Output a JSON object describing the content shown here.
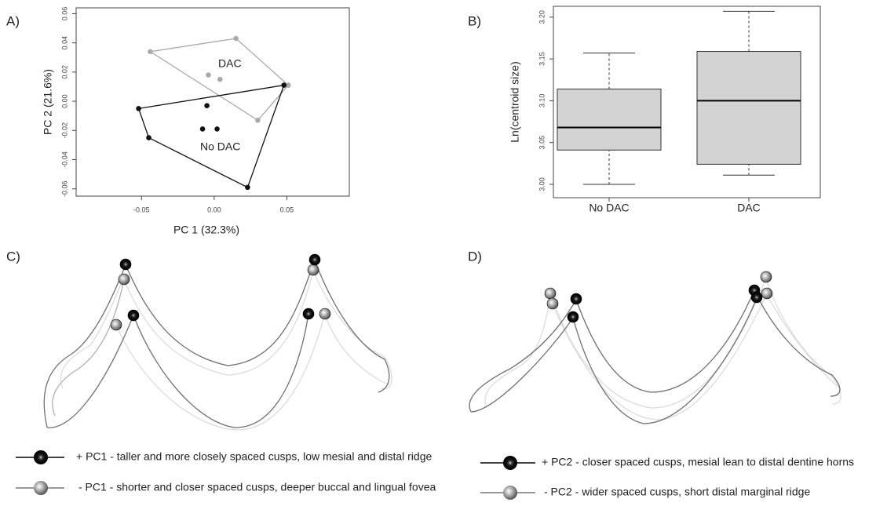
{
  "panels": [
    "A)",
    "B)",
    "C)",
    "D)"
  ],
  "chart_data": [
    {
      "type": "scatter",
      "xlabel": "PC 1 (32.3%)",
      "ylabel": "PC 2 (21.6%)",
      "xlim": [
        -0.095,
        0.093
      ],
      "ylim": [
        -0.065,
        0.064
      ],
      "xticks": [
        -0.05,
        {
          "value": 0,
          "label": "0.00"
        },
        0.05
      ],
      "yticks": [
        -0.06,
        -0.04,
        -0.02,
        {
          "value": 0,
          "label": "0.00"
        },
        0.02,
        0.04,
        0.06
      ],
      "hull": true,
      "series": [
        {
          "name": "DAC",
          "color": "#aaaaaa",
          "x": [
            -0.044,
            0.015,
            -0.004,
            0.004,
            0.051,
            0.03
          ],
          "values": [
            0.034,
            0.043,
            0.018,
            0.015,
            0.011,
            -0.013
          ]
        },
        {
          "name": "No DAC",
          "color": "#111111",
          "x": [
            -0.052,
            -0.045,
            -0.005,
            -0.008,
            0.002,
            0.023,
            0.048
          ],
          "values": [
            -0.005,
            -0.025,
            -0.003,
            -0.019,
            -0.019,
            -0.059,
            0.011
          ]
        }
      ]
    },
    {
      "type": "box",
      "ylabel": "Ln(centroid size)",
      "categories": [
        "No DAC",
        "DAC"
      ],
      "color": "#d3d3d3",
      "ylim": [
        2.984,
        3.213
      ],
      "yticks": [
        {
          "value": 3,
          "label": "3.00"
        },
        3.05,
        {
          "value": 3.1,
          "label": "3.10"
        },
        3.15,
        {
          "value": 3.2,
          "label": "3.20"
        }
      ],
      "whislo": [
        3.0,
        3.011
      ],
      "q1": [
        3.041,
        3.024
      ],
      "median": [
        3.068,
        3.1
      ],
      "q3": [
        3.114,
        3.159
      ],
      "whishi": [
        3.157,
        3.207
      ]
    }
  ],
  "legend": {
    "C": [
      "+ PC1  - taller and more closely spaced cusps, low mesial and distal ridge",
      "- PC1  - shorter and closer spaced cusps, deeper buccal and lingual fovea"
    ],
    "D": [
      "+ PC2  - closer spaced cusps, mesial lean to distal dentine horns",
      "- PC2  - wider spaced cusps, short distal marginal ridge"
    ]
  }
}
